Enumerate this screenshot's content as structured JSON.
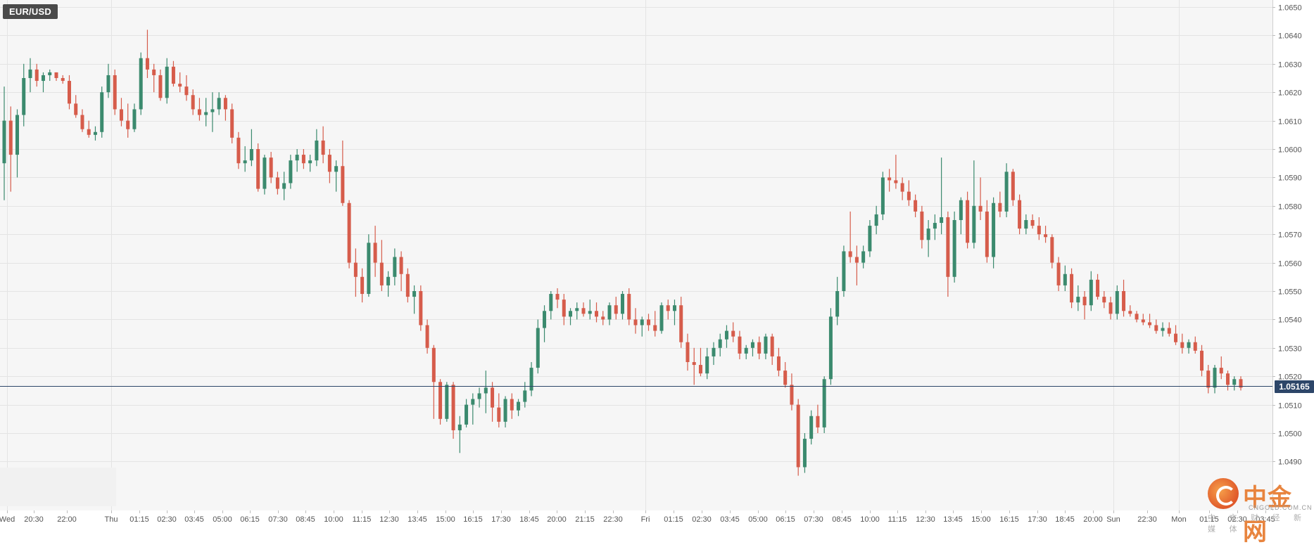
{
  "symbol": "EUR/USD",
  "current_price_label": "1.05165",
  "watermark": {
    "name": "中金网",
    "domain": "CNGOLD.COM.CN",
    "tagline": "中 文 财 经 新 媒 体"
  },
  "colors": {
    "up": "#3b8a6e",
    "down": "#d65c4b",
    "price_line": "#2d4669",
    "grid": "#e4e4e4",
    "plot_bg": "#f6f6f6"
  },
  "chart_data": {
    "type": "candlestick",
    "title": "",
    "xlabel": "",
    "ylabel": "",
    "ylim": [
      1.0475,
      1.0653
    ],
    "y_ticks": [
      "1.0650",
      "1.0640",
      "1.0630",
      "1.0620",
      "1.0610",
      "1.0600",
      "1.0590",
      "1.0580",
      "1.0570",
      "1.0560",
      "1.0550",
      "1.0540",
      "1.0530",
      "1.0520",
      "1.0510",
      "1.0500",
      "1.0490"
    ],
    "x_ticks": [
      "Wed",
      "20:30",
      "22:00",
      "Thu",
      "01:15",
      "02:30",
      "03:45",
      "05:00",
      "06:15",
      "07:30",
      "08:45",
      "10:00",
      "11:15",
      "12:30",
      "13:45",
      "15:00",
      "16:15",
      "17:30",
      "18:45",
      "20:00",
      "21:15",
      "22:30",
      "Fri",
      "01:15",
      "02:30",
      "03:45",
      "05:00",
      "06:15",
      "07:30",
      "08:45",
      "10:00",
      "11:15",
      "12:30",
      "13:45",
      "15:00",
      "16:15",
      "17:30",
      "18:45",
      "20:00",
      "Sun",
      "22:30",
      "Mon",
      "01:15",
      "02:30",
      "03:45"
    ],
    "current_price": 1.05165,
    "grid": true,
    "ohlc": [
      [
        1.0595,
        1.0622,
        1.0582,
        1.061
      ],
      [
        1.061,
        1.0615,
        1.0585,
        1.0598
      ],
      [
        1.0598,
        1.0614,
        1.059,
        1.0612
      ],
      [
        1.0612,
        1.063,
        1.0608,
        1.0625
      ],
      [
        1.0625,
        1.0632,
        1.062,
        1.0628
      ],
      [
        1.0628,
        1.063,
        1.0622,
        1.0624
      ],
      [
        1.0624,
        1.0627,
        1.062,
        1.0626
      ],
      [
        1.0626,
        1.0628,
        1.0624,
        1.0627
      ],
      [
        1.0627,
        1.0627,
        1.0624,
        1.0625
      ],
      [
        1.0625,
        1.0626,
        1.0623,
        1.0624
      ],
      [
        1.0624,
        1.0626,
        1.0614,
        1.0616
      ],
      [
        1.0616,
        1.0619,
        1.0611,
        1.0612
      ],
      [
        1.0612,
        1.0614,
        1.0606,
        1.0607
      ],
      [
        1.0607,
        1.061,
        1.0604,
        1.0605
      ],
      [
        1.0605,
        1.0608,
        1.0603,
        1.0606
      ],
      [
        1.0606,
        1.0622,
        1.0604,
        1.062
      ],
      [
        1.062,
        1.063,
        1.0618,
        1.0626
      ],
      [
        1.0626,
        1.0628,
        1.0612,
        1.0614
      ],
      [
        1.0614,
        1.0618,
        1.0608,
        1.061
      ],
      [
        1.061,
        1.0616,
        1.0604,
        1.0607
      ],
      [
        1.0607,
        1.0616,
        1.0606,
        1.0614
      ],
      [
        1.0614,
        1.0634,
        1.0612,
        1.0632
      ],
      [
        1.0632,
        1.0642,
        1.0625,
        1.0628
      ],
      [
        1.0628,
        1.063,
        1.062,
        1.0626
      ],
      [
        1.0626,
        1.0628,
        1.0617,
        1.0618
      ],
      [
        1.0618,
        1.0632,
        1.0616,
        1.0629
      ],
      [
        1.0629,
        1.0631,
        1.0622,
        1.0623
      ],
      [
        1.0623,
        1.0627,
        1.062,
        1.0622
      ],
      [
        1.0622,
        1.0626,
        1.0617,
        1.0619
      ],
      [
        1.0619,
        1.0621,
        1.0612,
        1.0614
      ],
      [
        1.0614,
        1.0618,
        1.061,
        1.0612
      ],
      [
        1.0612,
        1.0618,
        1.0608,
        1.0613
      ],
      [
        1.0613,
        1.062,
        1.0606,
        1.0614
      ],
      [
        1.0614,
        1.062,
        1.0612,
        1.0618
      ],
      [
        1.0618,
        1.0619,
        1.061,
        1.0614
      ],
      [
        1.0614,
        1.0616,
        1.0602,
        1.0604
      ],
      [
        1.0604,
        1.0606,
        1.0593,
        1.0595
      ],
      [
        1.0595,
        1.0601,
        1.0592,
        1.0596
      ],
      [
        1.0596,
        1.0607,
        1.0594,
        1.06
      ],
      [
        1.06,
        1.0602,
        1.0585,
        1.0586
      ],
      [
        1.0586,
        1.0598,
        1.0584,
        1.0597
      ],
      [
        1.0597,
        1.0599,
        1.0588,
        1.059
      ],
      [
        1.059,
        1.0592,
        1.0584,
        1.0586
      ],
      [
        1.0586,
        1.0592,
        1.0582,
        1.0588
      ],
      [
        1.0588,
        1.0598,
        1.0586,
        1.0596
      ],
      [
        1.0596,
        1.06,
        1.0592,
        1.0598
      ],
      [
        1.0598,
        1.06,
        1.0593,
        1.0595
      ],
      [
        1.0595,
        1.0598,
        1.0592,
        1.0596
      ],
      [
        1.0596,
        1.0607,
        1.0594,
        1.0603
      ],
      [
        1.0603,
        1.0608,
        1.0595,
        1.0598
      ],
      [
        1.0598,
        1.06,
        1.0588,
        1.0592
      ],
      [
        1.0592,
        1.0596,
        1.0585,
        1.0594
      ],
      [
        1.0594,
        1.0603,
        1.058,
        1.0581
      ],
      [
        1.0581,
        1.0582,
        1.0558,
        1.056
      ],
      [
        1.056,
        1.0565,
        1.0548,
        1.0555
      ],
      [
        1.0555,
        1.0558,
        1.0546,
        1.0549
      ],
      [
        1.0549,
        1.057,
        1.0548,
        1.0567
      ],
      [
        1.0567,
        1.0573,
        1.0555,
        1.056
      ],
      [
        1.056,
        1.0568,
        1.055,
        1.0552
      ],
      [
        1.0552,
        1.0557,
        1.0548,
        1.0555
      ],
      [
        1.0555,
        1.0565,
        1.0552,
        1.0562
      ],
      [
        1.0562,
        1.0564,
        1.055,
        1.0556
      ],
      [
        1.0556,
        1.0558,
        1.0546,
        1.0548
      ],
      [
        1.0548,
        1.0552,
        1.0542,
        1.055
      ],
      [
        1.055,
        1.0552,
        1.0536,
        1.0538
      ],
      [
        1.0538,
        1.054,
        1.0528,
        1.053
      ],
      [
        1.053,
        1.0531,
        1.0505,
        1.0518
      ],
      [
        1.0518,
        1.0519,
        1.0503,
        1.0505
      ],
      [
        1.0505,
        1.0518,
        1.0504,
        1.0517
      ],
      [
        1.0517,
        1.0518,
        1.0498,
        1.0501
      ],
      [
        1.0501,
        1.0506,
        1.0493,
        1.0503
      ],
      [
        1.0503,
        1.0512,
        1.0502,
        1.051
      ],
      [
        1.051,
        1.0514,
        1.0503,
        1.0512
      ],
      [
        1.0512,
        1.0516,
        1.0509,
        1.0514
      ],
      [
        1.0514,
        1.0522,
        1.0507,
        1.0516
      ],
      [
        1.0516,
        1.0518,
        1.0504,
        1.0509
      ],
      [
        1.0509,
        1.0514,
        1.0502,
        1.0504
      ],
      [
        1.0504,
        1.0513,
        1.0502,
        1.0512
      ],
      [
        1.0512,
        1.0514,
        1.0505,
        1.0508
      ],
      [
        1.0508,
        1.0512,
        1.0506,
        1.0511
      ],
      [
        1.0511,
        1.0518,
        1.0509,
        1.0515
      ],
      [
        1.0515,
        1.0525,
        1.0513,
        1.0523
      ],
      [
        1.0523,
        1.054,
        1.0521,
        1.0537
      ],
      [
        1.0537,
        1.0545,
        1.0532,
        1.0543
      ],
      [
        1.0543,
        1.055,
        1.054,
        1.0549
      ],
      [
        1.0549,
        1.0551,
        1.0544,
        1.0547
      ],
      [
        1.0547,
        1.0549,
        1.0538,
        1.0541
      ],
      [
        1.0541,
        1.0544,
        1.0538,
        1.0543
      ],
      [
        1.0543,
        1.0546,
        1.054,
        1.0544
      ],
      [
        1.0544,
        1.0546,
        1.0541,
        1.0542
      ],
      [
        1.0542,
        1.0547,
        1.054,
        1.0543
      ],
      [
        1.0543,
        1.0546,
        1.0539,
        1.0541
      ],
      [
        1.0541,
        1.0543,
        1.0538,
        1.054
      ],
      [
        1.054,
        1.0546,
        1.0538,
        1.0545
      ],
      [
        1.0545,
        1.0548,
        1.054,
        1.0542
      ],
      [
        1.0542,
        1.055,
        1.054,
        1.0549
      ],
      [
        1.0549,
        1.0551,
        1.0538,
        1.054
      ],
      [
        1.054,
        1.0544,
        1.0535,
        1.0538
      ],
      [
        1.0538,
        1.0541,
        1.0534,
        1.054
      ],
      [
        1.054,
        1.0542,
        1.0536,
        1.0538
      ],
      [
        1.0538,
        1.0543,
        1.0534,
        1.0536
      ],
      [
        1.0536,
        1.0546,
        1.0535,
        1.0545
      ],
      [
        1.0545,
        1.0547,
        1.054,
        1.0543
      ],
      [
        1.0543,
        1.0547,
        1.0538,
        1.0545
      ],
      [
        1.0545,
        1.0548,
        1.053,
        1.0532
      ],
      [
        1.0532,
        1.0535,
        1.0522,
        1.0525
      ],
      [
        1.0525,
        1.053,
        1.0517,
        1.0524
      ],
      [
        1.0524,
        1.053,
        1.052,
        1.0521
      ],
      [
        1.0521,
        1.053,
        1.0519,
        1.0527
      ],
      [
        1.0527,
        1.0532,
        1.0524,
        1.053
      ],
      [
        1.053,
        1.0535,
        1.0527,
        1.0533
      ],
      [
        1.0533,
        1.0538,
        1.053,
        1.0536
      ],
      [
        1.0536,
        1.0539,
        1.0532,
        1.0534
      ],
      [
        1.0534,
        1.0536,
        1.0526,
        1.0528
      ],
      [
        1.0528,
        1.0531,
        1.0526,
        1.053
      ],
      [
        1.053,
        1.0533,
        1.0527,
        1.0532
      ],
      [
        1.0532,
        1.0534,
        1.0526,
        1.0528
      ],
      [
        1.0528,
        1.0535,
        1.0526,
        1.0534
      ],
      [
        1.0534,
        1.0535,
        1.0524,
        1.0527
      ],
      [
        1.0527,
        1.053,
        1.052,
        1.0522
      ],
      [
        1.0522,
        1.0525,
        1.0516,
        1.0517
      ],
      [
        1.0517,
        1.0521,
        1.0508,
        1.051
      ],
      [
        1.051,
        1.0512,
        1.0485,
        1.0488
      ],
      [
        1.0488,
        1.05,
        1.0486,
        1.0498
      ],
      [
        1.0498,
        1.0508,
        1.0496,
        1.0506
      ],
      [
        1.0506,
        1.051,
        1.05,
        1.0502
      ],
      [
        1.0502,
        1.052,
        1.05,
        1.0519
      ],
      [
        1.0519,
        1.0544,
        1.0517,
        1.0541
      ],
      [
        1.0541,
        1.0555,
        1.0538,
        1.055
      ],
      [
        1.055,
        1.0566,
        1.0548,
        1.0564
      ],
      [
        1.0564,
        1.0578,
        1.056,
        1.0562
      ],
      [
        1.0562,
        1.0566,
        1.0552,
        1.056
      ],
      [
        1.056,
        1.0566,
        1.0558,
        1.0564
      ],
      [
        1.0564,
        1.0575,
        1.0562,
        1.0573
      ],
      [
        1.0573,
        1.058,
        1.057,
        1.0577
      ],
      [
        1.0577,
        1.0592,
        1.0575,
        1.059
      ],
      [
        1.059,
        1.0593,
        1.0585,
        1.0589
      ],
      [
        1.0589,
        1.0598,
        1.0586,
        1.0588
      ],
      [
        1.0588,
        1.059,
        1.0582,
        1.0585
      ],
      [
        1.0585,
        1.0589,
        1.058,
        1.0582
      ],
      [
        1.0582,
        1.0584,
        1.0576,
        1.0578
      ],
      [
        1.0578,
        1.058,
        1.0565,
        1.0568
      ],
      [
        1.0568,
        1.0575,
        1.0562,
        1.0572
      ],
      [
        1.0572,
        1.0577,
        1.0568,
        1.0574
      ],
      [
        1.0574,
        1.0597,
        1.057,
        1.0576
      ],
      [
        1.0576,
        1.0578,
        1.0548,
        1.0555
      ],
      [
        1.0555,
        1.0578,
        1.0553,
        1.0575
      ],
      [
        1.0575,
        1.0583,
        1.057,
        1.0582
      ],
      [
        1.0582,
        1.0585,
        1.0565,
        1.0567
      ],
      [
        1.0567,
        1.0596,
        1.0565,
        1.058
      ],
      [
        1.058,
        1.059,
        1.0575,
        1.0578
      ],
      [
        1.0578,
        1.0582,
        1.056,
        1.0562
      ],
      [
        1.0562,
        1.0583,
        1.0558,
        1.0581
      ],
      [
        1.0581,
        1.0585,
        1.0576,
        1.0578
      ],
      [
        1.0578,
        1.0595,
        1.0576,
        1.0592
      ],
      [
        1.0592,
        1.0593,
        1.058,
        1.0582
      ],
      [
        1.0582,
        1.0584,
        1.057,
        1.0572
      ],
      [
        1.0572,
        1.0577,
        1.057,
        1.0575
      ],
      [
        1.0575,
        1.0577,
        1.0572,
        1.0573
      ],
      [
        1.0573,
        1.0576,
        1.0568,
        1.057
      ],
      [
        1.057,
        1.0573,
        1.0567,
        1.0569
      ],
      [
        1.0569,
        1.057,
        1.0558,
        1.056
      ],
      [
        1.056,
        1.0562,
        1.055,
        1.0552
      ],
      [
        1.0552,
        1.0559,
        1.055,
        1.0556
      ],
      [
        1.0556,
        1.0558,
        1.0544,
        1.0546
      ],
      [
        1.0546,
        1.0552,
        1.0543,
        1.0548
      ],
      [
        1.0548,
        1.055,
        1.054,
        1.0545
      ],
      [
        1.0545,
        1.0557,
        1.0543,
        1.0554
      ],
      [
        1.0554,
        1.0556,
        1.0547,
        1.0548
      ],
      [
        1.0548,
        1.055,
        1.0544,
        1.0546
      ],
      [
        1.0546,
        1.0548,
        1.054,
        1.0542
      ],
      [
        1.0542,
        1.0552,
        1.054,
        1.055
      ],
      [
        1.055,
        1.0554,
        1.0541,
        1.0543
      ],
      [
        1.0543,
        1.0545,
        1.0541,
        1.0542
      ],
      [
        1.0542,
        1.0543,
        1.0539,
        1.054
      ],
      [
        1.054,
        1.0542,
        1.0538,
        1.0539
      ],
      [
        1.0539,
        1.0542,
        1.0537,
        1.0538
      ],
      [
        1.0538,
        1.054,
        1.0535,
        1.0536
      ],
      [
        1.0536,
        1.0539,
        1.0534,
        1.0537
      ],
      [
        1.0537,
        1.0539,
        1.0534,
        1.0535
      ],
      [
        1.0535,
        1.0538,
        1.0531,
        1.0532
      ],
      [
        1.0532,
        1.0535,
        1.0528,
        1.053
      ],
      [
        1.053,
        1.0533,
        1.0528,
        1.0532
      ],
      [
        1.0532,
        1.0534,
        1.0528,
        1.0529
      ],
      [
        1.0529,
        1.0531,
        1.052,
        1.0522
      ],
      [
        1.0522,
        1.0524,
        1.0514,
        1.0516
      ],
      [
        1.0516,
        1.0524,
        1.0514,
        1.0523
      ],
      [
        1.0523,
        1.0527,
        1.0519,
        1.0521
      ],
      [
        1.0521,
        1.0522,
        1.0515,
        1.0517
      ],
      [
        1.0517,
        1.052,
        1.0515,
        1.0519
      ],
      [
        1.0519,
        1.052,
        1.0515,
        1.0516
      ]
    ]
  }
}
